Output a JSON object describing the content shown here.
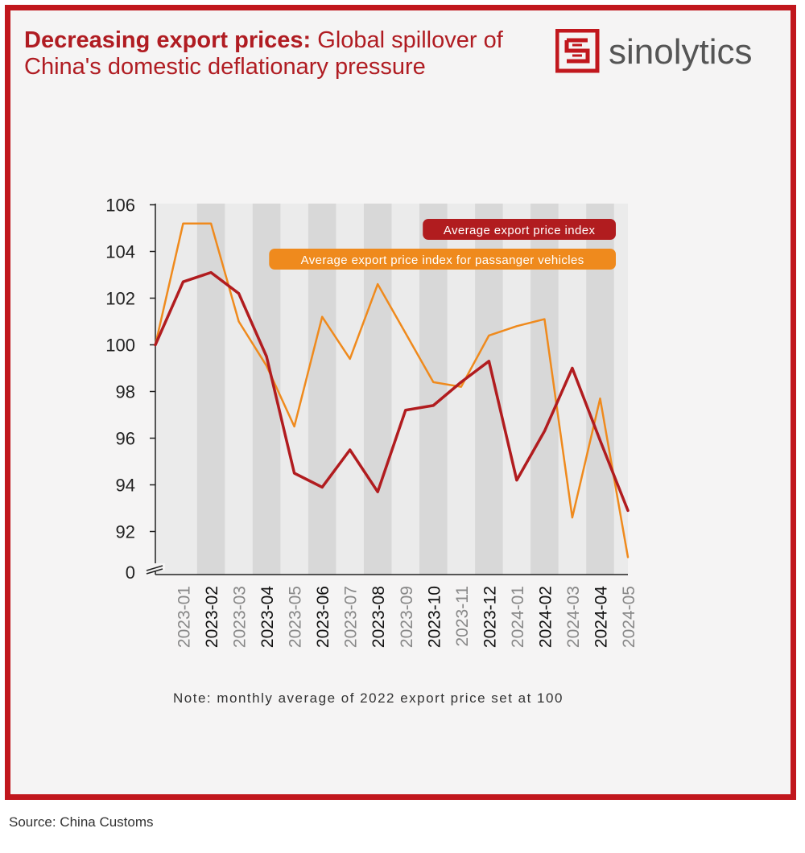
{
  "title": {
    "bold": "Decreasing export prices:",
    "rest": "Global spillover of China's domestic deflationary pressure"
  },
  "logo": {
    "text": "sinolytics"
  },
  "note": "Note: monthly average of 2022 export price set at 100",
  "source": "Source: China Customs",
  "colors": {
    "frame": "#c1171d",
    "series_dark": "#b11c1f",
    "series_orange": "#ef8a1d"
  },
  "chart_data": {
    "type": "line",
    "categories": [
      "",
      "2023-01",
      "2023-02",
      "2023-03",
      "2023-04",
      "2023-05",
      "2023-06",
      "2023-07",
      "2023-08",
      "2023-09",
      "2023-10",
      "2023-11",
      "2023-12",
      "2024-01",
      "2024-02",
      "2024-03",
      "2024-04",
      "2024-05"
    ],
    "y_ticks": [
      "106",
      "104",
      "102",
      "100",
      "98",
      "96",
      "94",
      "92",
      "0"
    ],
    "ylim": [
      91,
      106
    ],
    "y_axis_break": true,
    "series": [
      {
        "name": "Average export price index",
        "color": "#b11c1f",
        "values": [
          100.0,
          102.7,
          103.1,
          102.2,
          99.5,
          94.5,
          93.9,
          95.5,
          93.7,
          97.2,
          97.4,
          98.4,
          99.3,
          94.2,
          96.3,
          99.0,
          95.9,
          92.9
        ]
      },
      {
        "name": "Average export price index for passanger vehicles",
        "color": "#ef8a1d",
        "values": [
          100.0,
          105.2,
          105.2,
          101.0,
          99.1,
          96.5,
          101.2,
          99.4,
          102.6,
          100.5,
          98.4,
          98.2,
          100.4,
          100.8,
          101.1,
          92.6,
          97.7,
          90.9
        ]
      }
    ],
    "legend_position": "top-right",
    "grid": "alternating vertical bands",
    "bold_ticks": [
      "2023-02",
      "2023-04",
      "2023-06",
      "2023-08",
      "2023-10",
      "2023-12",
      "2024-02",
      "2024-04"
    ]
  }
}
